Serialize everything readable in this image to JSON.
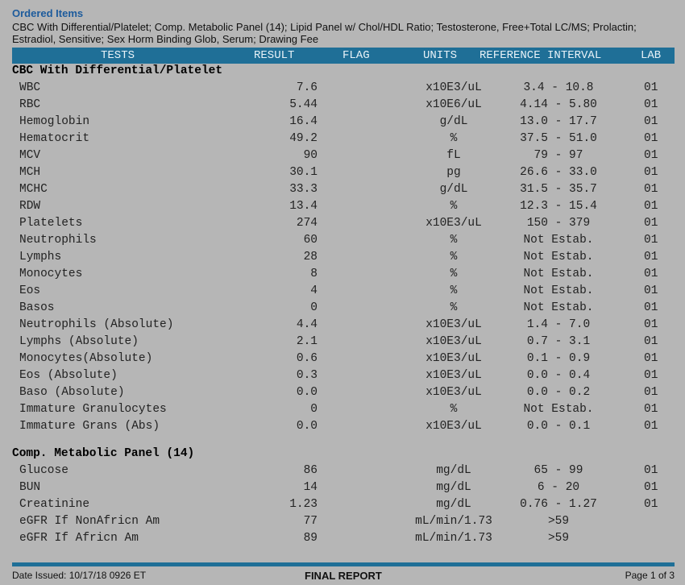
{
  "header": {
    "title": "Ordered Items",
    "line1": "CBC With Differential/Platelet; Comp. Metabolic Panel (14); Lipid Panel w/ Chol/HDL Ratio; Testosterone, Free+Total LC/MS; Prolactin;",
    "line2": "Estradiol, Sensitive; Sex Horm Binding Glob, Serum; Drawing Fee"
  },
  "columns": {
    "tests": "TESTS",
    "result": "RESULT",
    "flag": "FLAG",
    "units": "UNITS",
    "reference": "REFERENCE INTERVAL",
    "lab": "LAB"
  },
  "sections": [
    {
      "title": "CBC With Differential/Platelet",
      "rows": [
        {
          "test": "WBC",
          "result": "7.6",
          "units": "x10E3/uL",
          "reference": "3.4 - 10.8",
          "lab": "01"
        },
        {
          "test": "RBC",
          "result": "5.44",
          "units": "x10E6/uL",
          "reference": "4.14 - 5.80",
          "lab": "01"
        },
        {
          "test": "Hemoglobin",
          "result": "16.4",
          "units": "g/dL",
          "reference": "13.0 - 17.7",
          "lab": "01"
        },
        {
          "test": "Hematocrit",
          "result": "49.2",
          "units": "%",
          "reference": "37.5 - 51.0",
          "lab": "01"
        },
        {
          "test": "MCV",
          "result": "90",
          "units": "fL",
          "reference": "79 - 97",
          "lab": "01"
        },
        {
          "test": "MCH",
          "result": "30.1",
          "units": "pg",
          "reference": "26.6 - 33.0",
          "lab": "01"
        },
        {
          "test": "MCHC",
          "result": "33.3",
          "units": "g/dL",
          "reference": "31.5 - 35.7",
          "lab": "01"
        },
        {
          "test": "RDW",
          "result": "13.4",
          "units": "%",
          "reference": "12.3 - 15.4",
          "lab": "01"
        },
        {
          "test": "Platelets",
          "result": "274",
          "units": "x10E3/uL",
          "reference": "150 - 379",
          "lab": "01"
        },
        {
          "test": "Neutrophils",
          "result": "60",
          "units": "%",
          "reference": "Not Estab.",
          "lab": "01"
        },
        {
          "test": "Lymphs",
          "result": "28",
          "units": "%",
          "reference": "Not Estab.",
          "lab": "01"
        },
        {
          "test": "Monocytes",
          "result": "8",
          "units": "%",
          "reference": "Not Estab.",
          "lab": "01"
        },
        {
          "test": "Eos",
          "result": "4",
          "units": "%",
          "reference": "Not Estab.",
          "lab": "01"
        },
        {
          "test": "Basos",
          "result": "0",
          "units": "%",
          "reference": "Not Estab.",
          "lab": "01"
        },
        {
          "test": "Neutrophils (Absolute)",
          "result": "4.4",
          "units": "x10E3/uL",
          "reference": "1.4 - 7.0",
          "lab": "01"
        },
        {
          "test": "Lymphs (Absolute)",
          "result": "2.1",
          "units": "x10E3/uL",
          "reference": "0.7 - 3.1",
          "lab": "01"
        },
        {
          "test": "Monocytes(Absolute)",
          "result": "0.6",
          "units": "x10E3/uL",
          "reference": "0.1 - 0.9",
          "lab": "01"
        },
        {
          "test": "Eos (Absolute)",
          "result": "0.3",
          "units": "x10E3/uL",
          "reference": "0.0 - 0.4",
          "lab": "01"
        },
        {
          "test": "Baso (Absolute)",
          "result": "0.0",
          "units": "x10E3/uL",
          "reference": "0.0 - 0.2",
          "lab": "01"
        },
        {
          "test": "Immature Granulocytes",
          "result": "0",
          "units": "%",
          "reference": "Not Estab.",
          "lab": "01"
        },
        {
          "test": "Immature Grans (Abs)",
          "result": "0.0",
          "units": "x10E3/uL",
          "reference": "0.0 - 0.1",
          "lab": "01"
        }
      ]
    },
    {
      "title": "Comp. Metabolic Panel (14)",
      "rows": [
        {
          "test": "Glucose",
          "result": "86",
          "units": "mg/dL",
          "reference": "65 - 99",
          "lab": "01"
        },
        {
          "test": "BUN",
          "result": "14",
          "units": "mg/dL",
          "reference": "6 - 20",
          "lab": "01"
        },
        {
          "test": "Creatinine",
          "result": "1.23",
          "units": "mg/dL",
          "reference": "0.76 - 1.27",
          "lab": "01"
        },
        {
          "test": "eGFR If NonAfricn Am",
          "result": "77",
          "units": "mL/min/1.73",
          "reference": ">59",
          "lab": ""
        },
        {
          "test": "eGFR If Africn Am",
          "result": "89",
          "units": "mL/min/1.73",
          "reference": ">59",
          "lab": ""
        }
      ]
    }
  ],
  "footer": {
    "date_issued": "Date Issued: 10/17/18 0926 ET",
    "status": "FINAL REPORT",
    "page": "Page 1 of 3"
  }
}
